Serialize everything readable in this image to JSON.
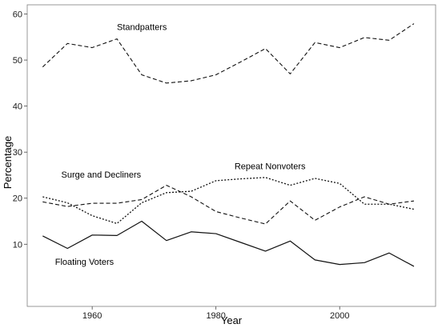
{
  "chart_data": {
    "type": "line",
    "xlabel": "Year",
    "ylabel": "Percentage",
    "xlim": [
      1949.5,
      2015.5
    ],
    "ylim": [
      -3.5,
      62
    ],
    "x_ticks": [
      1960,
      1980,
      2000
    ],
    "y_ticks": [
      10,
      20,
      30,
      40,
      50,
      60
    ],
    "grid": false,
    "x": [
      1952,
      1956,
      1960,
      1964,
      1968,
      1972,
      1976,
      1980,
      1984,
      1988,
      1992,
      1996,
      2000,
      2004,
      2008,
      2012
    ],
    "series": [
      {
        "name": "Standpatters",
        "style": "dashed",
        "values": [
          48.5,
          53.6,
          52.7,
          54.6,
          46.8,
          45.0,
          45.5,
          46.8,
          49.6,
          52.5,
          47.0,
          53.8,
          52.7,
          54.9,
          54.3,
          57.9
        ]
      },
      {
        "name": "Repeat Nonvoters",
        "style": "dotted",
        "values": [
          20.3,
          19.0,
          16.2,
          14.5,
          19.0,
          21.2,
          21.5,
          23.8,
          24.2,
          24.5,
          22.8,
          24.3,
          23.2,
          18.7,
          18.7,
          17.6
        ]
      },
      {
        "name": "Surge and Decliners",
        "style": "dashed",
        "values": [
          19.2,
          18.2,
          18.9,
          18.9,
          19.7,
          22.8,
          20.3,
          17.1,
          15.7,
          14.4,
          19.4,
          15.2,
          18.1,
          20.3,
          18.7,
          19.4
        ]
      },
      {
        "name": "Floating Voters",
        "style": "solid",
        "values": [
          11.8,
          9.1,
          12.0,
          11.9,
          15.0,
          10.8,
          12.7,
          12.3,
          10.4,
          8.5,
          10.7,
          6.6,
          5.6,
          6.0,
          8.1,
          5.2
        ]
      }
    ]
  }
}
